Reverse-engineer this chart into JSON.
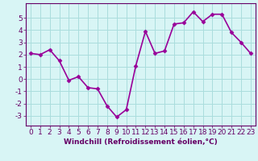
{
  "x": [
    0,
    1,
    2,
    3,
    4,
    5,
    6,
    7,
    8,
    9,
    10,
    11,
    12,
    13,
    14,
    15,
    16,
    17,
    18,
    19,
    20,
    21,
    22,
    23
  ],
  "y": [
    2.1,
    2.0,
    2.4,
    1.5,
    -0.1,
    0.2,
    -0.7,
    -0.8,
    -2.2,
    -3.1,
    -2.5,
    1.1,
    3.9,
    2.1,
    2.3,
    4.5,
    4.6,
    5.5,
    4.7,
    5.3,
    5.3,
    3.8,
    3.0,
    2.1
  ],
  "xlabel": "Windchill (Refroidissement éolien,°C)",
  "xlim": [
    -0.5,
    23.5
  ],
  "ylim": [
    -3.8,
    6.2
  ],
  "yticks": [
    -3,
    -2,
    -1,
    0,
    1,
    2,
    3,
    4,
    5
  ],
  "xticks": [
    0,
    1,
    2,
    3,
    4,
    5,
    6,
    7,
    8,
    9,
    10,
    11,
    12,
    13,
    14,
    15,
    16,
    17,
    18,
    19,
    20,
    21,
    22,
    23
  ],
  "line_color": "#990099",
  "marker_color": "#990099",
  "bg_color": "#d8f5f5",
  "grid_color": "#aadddd",
  "axis_color": "#660066",
  "label_color": "#660066",
  "tick_color": "#660066",
  "xlabel_fontsize": 6.5,
  "tick_fontsize": 6.5,
  "line_width": 1.2,
  "marker_size": 2.5
}
